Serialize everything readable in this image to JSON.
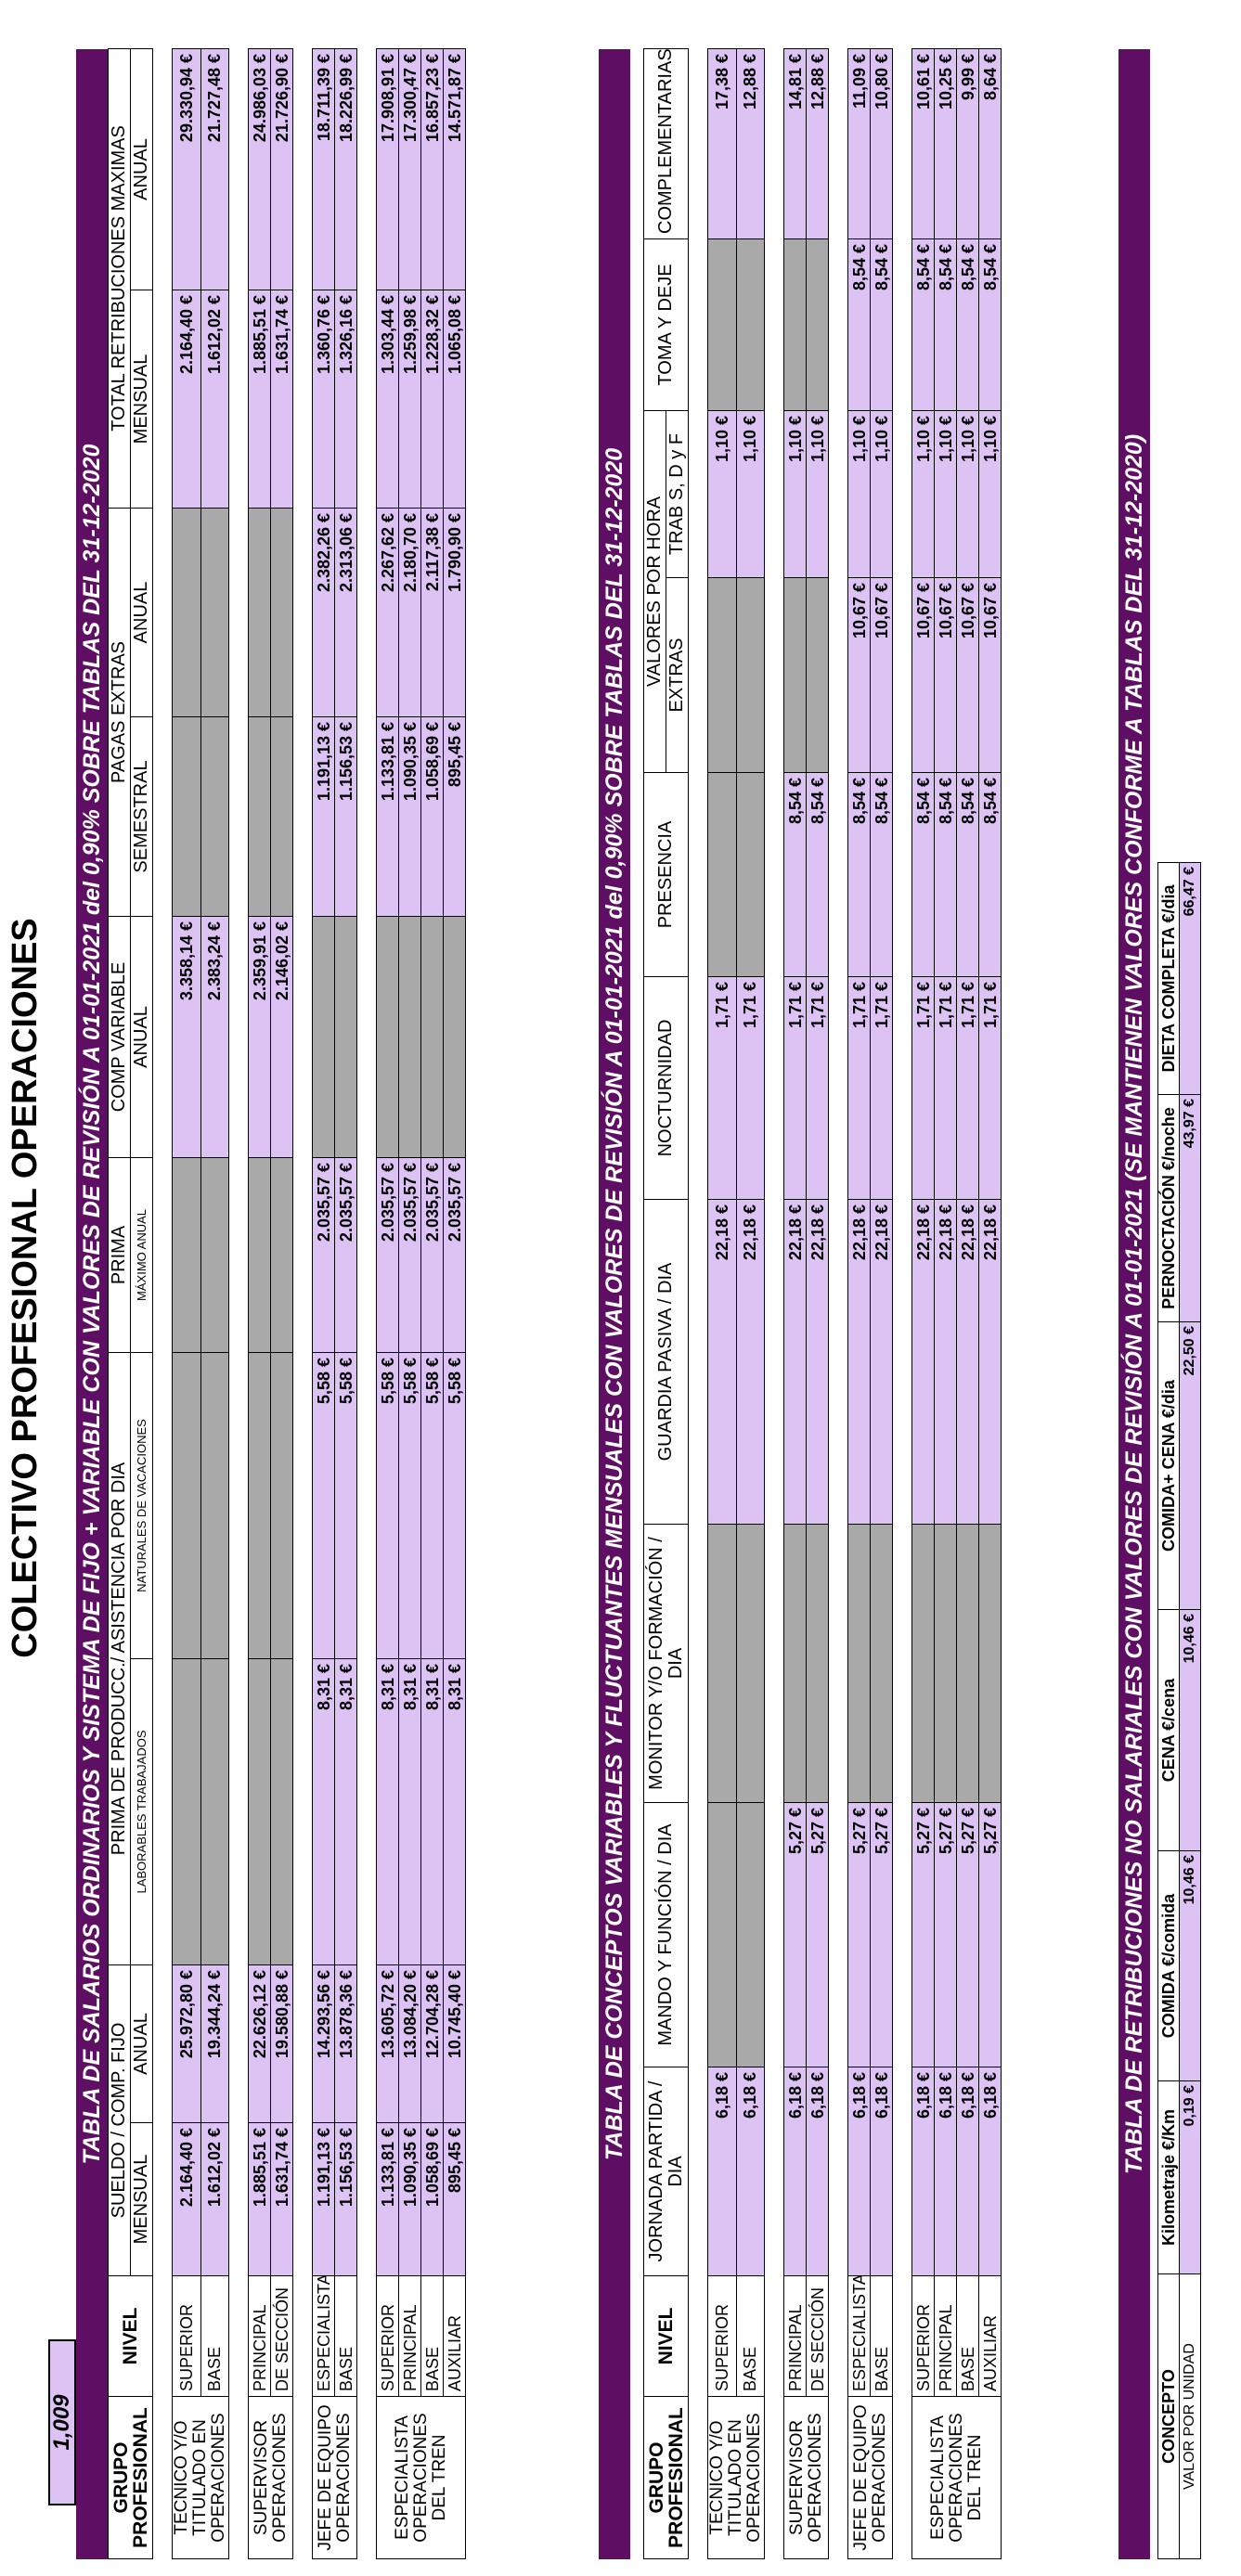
{
  "title": "COLECTIVO PROFESIONAL OPERACIONES",
  "factor": "1,009",
  "banner1": "TABLA DE SALARIOS ORDINARIOS Y SISTEMA DE FIJO + VARIABLE CON VALORES DE REVISIÓN A 01-01-2021 del 0,90% SOBRE TABLAS DEL 31-12-2020",
  "banner2": "TABLA DE CONCEPTOS VARIABLES Y FLUCTUANTES MENSUALES CON VALORES DE REVISIÓN A 01-01-2021 del 0,90% SOBRE TABLAS DEL 31-12-2020",
  "banner3": "TABLA DE RETRIBUCIONES NO SALARIALES CON VALORES DE REVISIÓN A 01-01-2021 (SE MANTIENEN VALORES CONFORME A TABLAS DEL 31-12-2020)",
  "t1": {
    "h_grupo": "GRUPO PROFESIONAL",
    "h_nivel": "NIVEL",
    "h_sueldo": "SUELDO / COMP. FIJO",
    "h_prima_dia": "PRIMA DE PRODUCC./ ASISTENCIA POR DIA",
    "h_prima": "PRIMA",
    "h_comp_var": "COMP VARIABLE",
    "h_pagas": "PAGAS EXTRAS",
    "h_total": "TOTAL RETRIBUCIONES MAXIMAS",
    "s_mensual": "MENSUAL",
    "s_anual": "ANUAL",
    "s_laborables": "LABORABLES TRABAJADOS",
    "s_naturales": "NATURALES DE VACACIONES",
    "s_maximo": "MÁXIMO ANUAL",
    "s_anual2": "ANUAL",
    "s_semestral": "SEMESTRAL",
    "s_anual3": "ANUAL",
    "s_mensual2": "MENSUAL",
    "s_anual4": "ANUAL",
    "groups": [
      {
        "name": "TECNICO Y/O TITULADO EN OPERACIONES",
        "rows": [
          {
            "nivel": "SUPERIOR",
            "v": [
              "2.164,40 €",
              "25.972,80 €",
              "",
              "",
              "",
              "3.358,14 €",
              "",
              "",
              "2.164,40 €",
              "29.330,94 €"
            ]
          },
          {
            "nivel": "BASE",
            "v": [
              "1.612,02 €",
              "19.344,24 €",
              "",
              "",
              "",
              "2.383,24 €",
              "",
              "",
              "1.612,02 €",
              "21.727,48 €"
            ]
          }
        ]
      },
      {
        "name": "SUPERVISOR OPERACIONES",
        "rows": [
          {
            "nivel": "PRINCIPAL",
            "v": [
              "1.885,51 €",
              "22.626,12 €",
              "",
              "",
              "",
              "2.359,91 €",
              "",
              "",
              "1.885,51 €",
              "24.986,03 €"
            ]
          },
          {
            "nivel": "DE SECCIÓN",
            "v": [
              "1.631,74 €",
              "19.580,88 €",
              "",
              "",
              "",
              "2.146,02 €",
              "",
              "",
              "1.631,74 €",
              "21.726,90 €"
            ]
          }
        ]
      },
      {
        "name": "JEFE DE EQUIPO OPERACIONES",
        "rows": [
          {
            "nivel": "ESPECIALISTA",
            "v": [
              "1.191,13 €",
              "14.293,56 €",
              "8,31 €",
              "5,58 €",
              "2.035,57 €",
              "",
              "1.191,13 €",
              "2.382,26 €",
              "1.360,76 €",
              "18.711,39 €"
            ]
          },
          {
            "nivel": "BASE",
            "v": [
              "1.156,53 €",
              "13.878,36 €",
              "8,31 €",
              "5,58 €",
              "2.035,57 €",
              "",
              "1.156,53 €",
              "2.313,06 €",
              "1.326,16 €",
              "18.226,99 €"
            ]
          }
        ]
      },
      {
        "name": "ESPECIALISTA OPERACIONES DEL TREN",
        "rows": [
          {
            "nivel": "SUPERIOR",
            "v": [
              "1.133,81 €",
              "13.605,72 €",
              "8,31 €",
              "5,58 €",
              "2.035,57 €",
              "",
              "1.133,81 €",
              "2.267,62 €",
              "1.303,44 €",
              "17.908,91 €"
            ]
          },
          {
            "nivel": "PRINCIPAL",
            "v": [
              "1.090,35 €",
              "13.084,20 €",
              "8,31 €",
              "5,58 €",
              "2.035,57 €",
              "",
              "1.090,35 €",
              "2.180,70 €",
              "1.259,98 €",
              "17.300,47 €"
            ]
          },
          {
            "nivel": "BASE",
            "v": [
              "1.058,69 €",
              "12.704,28 €",
              "8,31 €",
              "5,58 €",
              "2.035,57 €",
              "",
              "1.058,69 €",
              "2.117,38 €",
              "1.228,32 €",
              "16.857,23 €"
            ]
          },
          {
            "nivel": "AUXILIAR",
            "v": [
              "895,45 €",
              "10.745,40 €",
              "8,31 €",
              "5,58 €",
              "2.035,57 €",
              "",
              "895,45 €",
              "1.790,90 €",
              "1.065,08 €",
              "14.571,87 €"
            ]
          }
        ]
      }
    ]
  },
  "t2": {
    "h_grupo": "GRUPO PROFESIONAL",
    "h_nivel": "NIVEL",
    "h_jornada": "JORNADA PARTIDA / DIA",
    "h_mando": "MANDO Y FUNCIÓN / DIA",
    "h_monitor": "MONITOR Y/O FORMACIÓN / DIA",
    "h_guardia": "GUARDIA PASIVA / DIA",
    "h_noct": "NOCTURNIDAD",
    "h_pres": "PRESENCIA",
    "h_valores": "VALORES POR HORA",
    "h_extras": "EXTRAS",
    "h_trab": "TRAB S, D y F",
    "h_toma": "TOMA Y DEJE",
    "h_compl": "COMPLEMENTARIAS",
    "groups": [
      {
        "name": "TECNICO Y/O TITULADO EN OPERACIONES",
        "rows": [
          {
            "nivel": "SUPERIOR",
            "v": [
              "6,18 €",
              "",
              "",
              "22,18 €",
              "1,71 €",
              "",
              "",
              "1,10 €",
              "",
              "17,38 €"
            ]
          },
          {
            "nivel": "BASE",
            "v": [
              "6,18 €",
              "",
              "",
              "22,18 €",
              "1,71 €",
              "",
              "",
              "1,10 €",
              "",
              "12,88 €"
            ]
          }
        ]
      },
      {
        "name": "SUPERVISOR OPERACIONES",
        "rows": [
          {
            "nivel": "PRINCIPAL",
            "v": [
              "6,18 €",
              "5,27 €",
              "",
              "22,18 €",
              "1,71 €",
              "8,54 €",
              "",
              "1,10 €",
              "",
              "14,81 €"
            ]
          },
          {
            "nivel": "DE SECCIÓN",
            "v": [
              "6,18 €",
              "5,27 €",
              "",
              "22,18 €",
              "1,71 €",
              "8,54 €",
              "",
              "1,10 €",
              "",
              "12,88 €"
            ]
          }
        ]
      },
      {
        "name": "JEFE DE EQUIPO OPERACIONES",
        "rows": [
          {
            "nivel": "ESPECIALISTA",
            "v": [
              "6,18 €",
              "5,27 €",
              "",
              "22,18 €",
              "1,71 €",
              "8,54 €",
              "10,67 €",
              "1,10 €",
              "8,54 €",
              "11,09 €"
            ]
          },
          {
            "nivel": "BASE",
            "v": [
              "6,18 €",
              "5,27 €",
              "",
              "22,18 €",
              "1,71 €",
              "8,54 €",
              "10,67 €",
              "1,10 €",
              "8,54 €",
              "10,80 €"
            ]
          }
        ]
      },
      {
        "name": "ESPECIALISTA OPERACIONES DEL TREN",
        "rows": [
          {
            "nivel": "SUPERIOR",
            "v": [
              "6,18 €",
              "5,27 €",
              "",
              "22,18 €",
              "1,71 €",
              "8,54 €",
              "10,67 €",
              "1,10 €",
              "8,54 €",
              "10,61 €"
            ]
          },
          {
            "nivel": "PRINCIPAL",
            "v": [
              "6,18 €",
              "5,27 €",
              "",
              "22,18 €",
              "1,71 €",
              "8,54 €",
              "10,67 €",
              "1,10 €",
              "8,54 €",
              "10,25 €"
            ]
          },
          {
            "nivel": "BASE",
            "v": [
              "6,18 €",
              "5,27 €",
              "",
              "22,18 €",
              "1,71 €",
              "8,54 €",
              "10,67 €",
              "1,10 €",
              "8,54 €",
              "9,99 €"
            ]
          },
          {
            "nivel": "AUXILIAR",
            "v": [
              "6,18 €",
              "5,27 €",
              "",
              "22,18 €",
              "1,71 €",
              "8,54 €",
              "10,67 €",
              "1,10 €",
              "8,54 €",
              "8,64 €"
            ]
          }
        ]
      }
    ]
  },
  "t3": {
    "concepto": "CONCEPTO",
    "valor_unidad": "VALOR POR UNIDAD",
    "headers": [
      "Kilometraje €/Km",
      "COMIDA €/comida",
      "CENA €/cena",
      "COMIDA+ CENA €/dia",
      "PERNOCTACIÓN €/noche",
      "DIETA COMPLETA €/dia"
    ],
    "values": [
      "0,19 €",
      "10,46 €",
      "10,46 €",
      "22,50 €",
      "43,97 €",
      "66,47 €"
    ]
  }
}
